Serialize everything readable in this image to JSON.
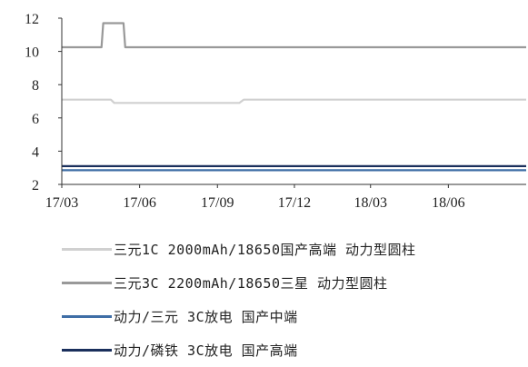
{
  "chart_data": {
    "type": "line",
    "title": "",
    "xlabel": "",
    "ylabel": "",
    "ylim": [
      2,
      12
    ],
    "yticks": [
      2,
      4,
      6,
      8,
      10,
      12
    ],
    "xlim": [
      "2017-03-01",
      "2018-09-01"
    ],
    "xticks": [
      {
        "date": "2017-03-01",
        "label": "17/03"
      },
      {
        "date": "2017-06-01",
        "label": "17/06"
      },
      {
        "date": "2017-09-01",
        "label": "17/09"
      },
      {
        "date": "2017-12-01",
        "label": "17/12"
      },
      {
        "date": "2018-03-01",
        "label": "18/03"
      },
      {
        "date": "2018-06-01",
        "label": "18/06"
      }
    ],
    "grid": false,
    "legend_position": "bottom",
    "series": [
      {
        "name": "三元1C 2000mAh/18650国产高端 动力型圆柱",
        "color": "#d0d0d0",
        "points": [
          [
            "2017-03-01",
            7.1
          ],
          [
            "2017-04-28",
            7.1
          ],
          [
            "2017-05-02",
            6.9
          ],
          [
            "2017-09-27",
            6.9
          ],
          [
            "2017-10-02",
            7.1
          ],
          [
            "2018-09-01",
            7.1
          ]
        ]
      },
      {
        "name": "三元3C 2200mAh/18650三星 动力型圆柱",
        "color": "#999999",
        "points": [
          [
            "2017-03-01",
            10.25
          ],
          [
            "2017-04-17",
            10.25
          ],
          [
            "2017-04-19",
            11.7
          ],
          [
            "2017-05-13",
            11.7
          ],
          [
            "2017-05-15",
            10.25
          ],
          [
            "2018-09-01",
            10.25
          ]
        ]
      },
      {
        "name": "动力/三元 3C放电 国产中端",
        "color": "#3f6ea6",
        "points": [
          [
            "2017-03-01",
            2.85
          ],
          [
            "2018-09-01",
            2.85
          ]
        ]
      },
      {
        "name": "动力/磷铁 3C放电 国产高端",
        "color": "#1a2f5c",
        "points": [
          [
            "2017-03-01",
            3.1
          ],
          [
            "2018-09-01",
            3.1
          ]
        ]
      }
    ]
  }
}
